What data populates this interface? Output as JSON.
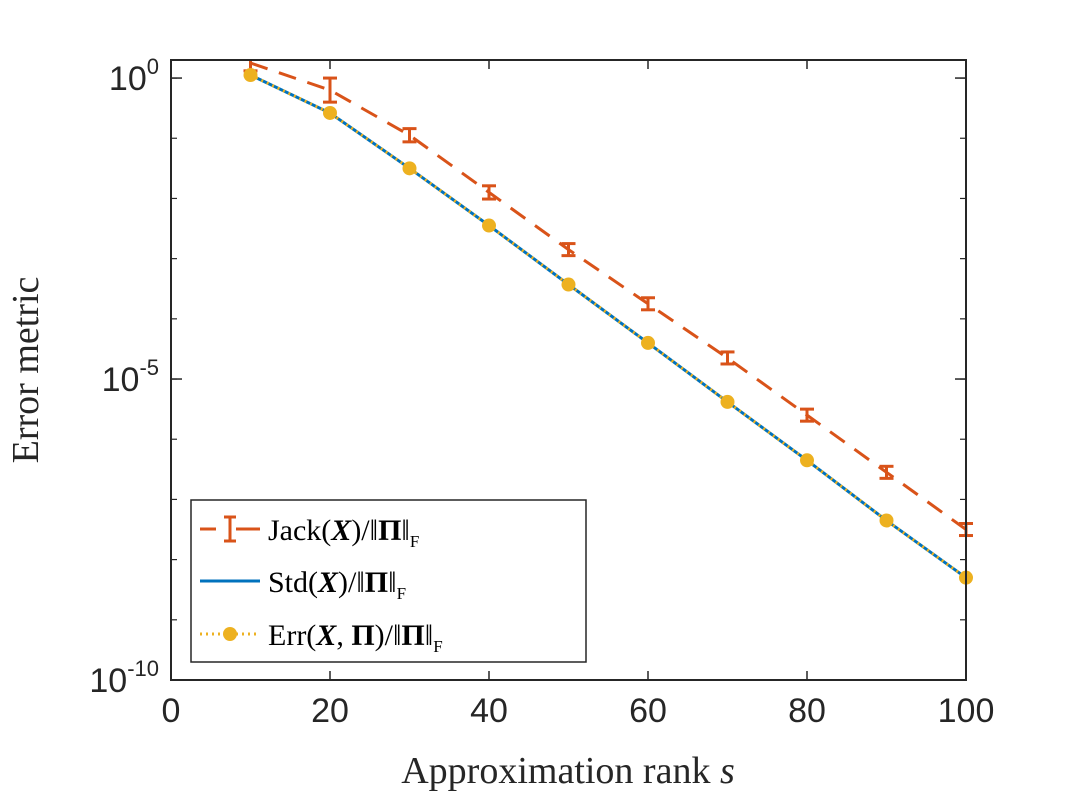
{
  "chart_data": {
    "type": "line",
    "y_scale": "log",
    "xlabel_text": "Approximation rank",
    "xlabel_var": "s",
    "ylabel": "Error metric",
    "xlim": [
      0,
      100
    ],
    "ylim_exp": [
      -10,
      0.3
    ],
    "x_ticks": [
      0,
      20,
      40,
      60,
      80,
      100
    ],
    "x_tick_labels": [
      "0",
      "20",
      "40",
      "60",
      "80",
      "100"
    ],
    "y_tick_exps": [
      0,
      -5,
      -10
    ],
    "y_tick_base": "10",
    "y_tick_exp_labels": [
      "0",
      "-5",
      "-10"
    ],
    "x": [
      10,
      20,
      30,
      40,
      50,
      60,
      70,
      80,
      90,
      100
    ],
    "series": [
      {
        "name": "Jack(X)/||Π||F",
        "style": "dashed-errorbar",
        "color": "#D95319",
        "log10_values": [
          0.25,
          -0.2,
          -0.95,
          -1.9,
          -2.85,
          -3.75,
          -4.65,
          -5.6,
          -6.55,
          -7.5
        ],
        "log10_err": [
          0.13,
          0.2,
          0.11,
          0.11,
          0.1,
          0.1,
          0.1,
          0.1,
          0.1,
          0.1
        ]
      },
      {
        "name": "Std(X)/||Π||F",
        "style": "solid",
        "color": "#0072BD",
        "log10_values": [
          0.05,
          -0.58,
          -1.5,
          -2.45,
          -3.43,
          -4.4,
          -5.38,
          -6.35,
          -7.35,
          -8.3
        ]
      },
      {
        "name": "Err(X,Π)/||Π||F",
        "style": "dotted-marker",
        "color": "#EDB120",
        "log10_values": [
          0.05,
          -0.58,
          -1.5,
          -2.45,
          -3.43,
          -4.4,
          -5.38,
          -6.35,
          -7.35,
          -8.3
        ]
      }
    ],
    "legend": {
      "placement": "bottom-left",
      "entries": [
        {
          "func": "Jack(",
          "var": "X",
          "sep": "",
          "mid": "",
          "close": ")/‖",
          "pi": "Π",
          "end": "‖",
          "sub": "F"
        },
        {
          "func": "Std(",
          "var": "X",
          "sep": "",
          "mid": "",
          "close": ")/‖",
          "pi": "Π",
          "end": "‖",
          "sub": "F"
        },
        {
          "func": "Err(",
          "var": "X",
          "sep": ", ",
          "mid": "Π",
          "close": ")/‖",
          "pi": "Π",
          "end": "‖",
          "sub": "F"
        }
      ]
    }
  }
}
